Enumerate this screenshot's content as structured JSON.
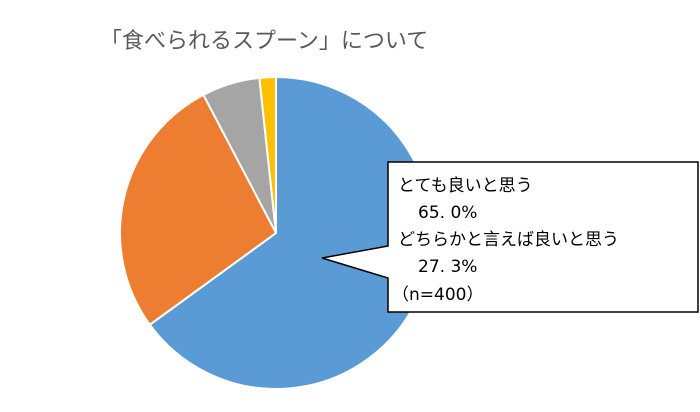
{
  "chart_data": {
    "type": "pie",
    "title": "「食べられるスプーン」について",
    "categories": [
      "とても良いと思う",
      "どちらかと言えば良いと思う",
      null,
      null
    ],
    "values": [
      65.0,
      27.3,
      6.0,
      1.7
    ],
    "value_labels": [
      "65. 0%",
      "27. 3%",
      null,
      null
    ],
    "colors": [
      "#5b9bd5",
      "#ed7d31",
      "#a5a5a5",
      "#ffc000"
    ],
    "annotation": "（n=400）"
  }
}
